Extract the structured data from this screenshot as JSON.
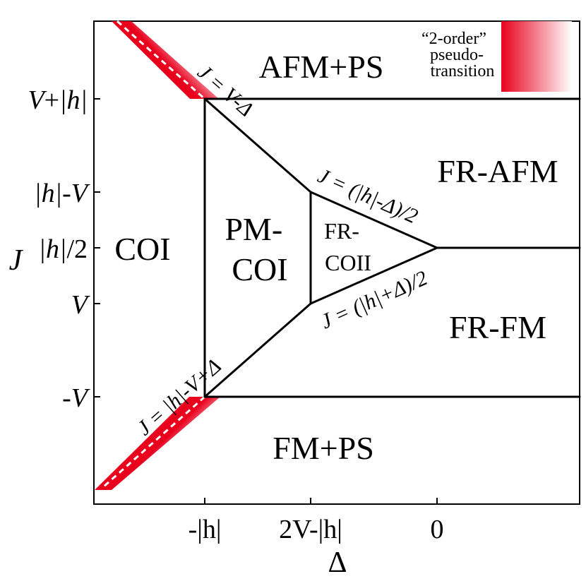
{
  "regions": {
    "afm_ps": "AFM+PS",
    "fr_afm": "FR-AFM",
    "coi": "COI",
    "pm_coi": [
      "PM-",
      "COI"
    ],
    "fr_coii": [
      "FR-",
      "COII"
    ],
    "fr_fm": "FR-FM",
    "fm_ps": "FM+PS"
  },
  "y_ticks": [
    {
      "pre": "V",
      "abs": "|h|",
      "post": "",
      "op": "+"
    },
    {
      "pre": "",
      "abs": "|h|",
      "post": "V",
      "op": "-"
    },
    {
      "pre": "",
      "abs": "|h|",
      "post": "/2",
      "op": ""
    },
    {
      "pre": "V",
      "abs": "",
      "post": "",
      "op": ""
    },
    {
      "pre": "-V",
      "abs": "",
      "post": "",
      "op": ""
    }
  ],
  "x_ticks": [
    "-|h|",
    "2V-|h|",
    "0"
  ],
  "axes": {
    "ylabel": "J",
    "xlabel": "Δ"
  },
  "boundary_equations": {
    "upper_diagonal": "J = V-Δ",
    "mid_upper": "J = (|h|-Δ)/2",
    "mid_lower": "J = (|h|+Δ)/2",
    "lower_diagonal": "J = |h|-V+Δ"
  },
  "legend": {
    "lines": [
      "“2-order”",
      "pseudo-",
      "transition"
    ],
    "color_from": "#e8001c",
    "color_to": "#ffffff"
  },
  "colors": {
    "line": "#000000",
    "pseudo_transition": "#e8001c"
  }
}
